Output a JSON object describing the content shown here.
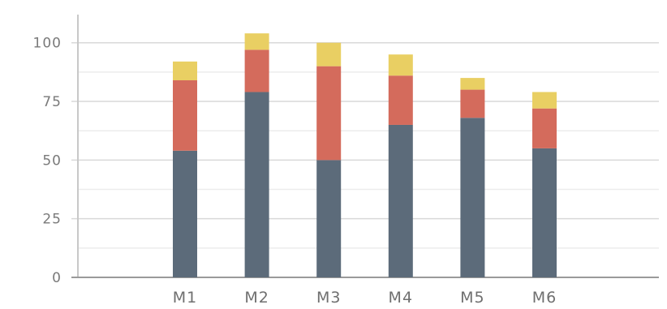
{
  "chart_data": {
    "type": "bar",
    "stacked": true,
    "categories": [
      "M1",
      "M2",
      "M3",
      "M4",
      "M5",
      "M6"
    ],
    "series": [
      {
        "color": "#5c6b7a",
        "values": [
          54,
          79,
          50,
          65,
          68,
          55
        ]
      },
      {
        "color": "#d46b5c",
        "values": [
          30,
          18,
          40,
          21,
          12,
          17
        ]
      },
      {
        "color": "#e9cf63",
        "values": [
          8,
          7,
          10,
          9,
          5,
          7
        ]
      }
    ],
    "yticks": [
      0,
      25,
      50,
      75,
      100
    ],
    "ylim": [
      0,
      112
    ],
    "grid": true,
    "legend": "none"
  }
}
